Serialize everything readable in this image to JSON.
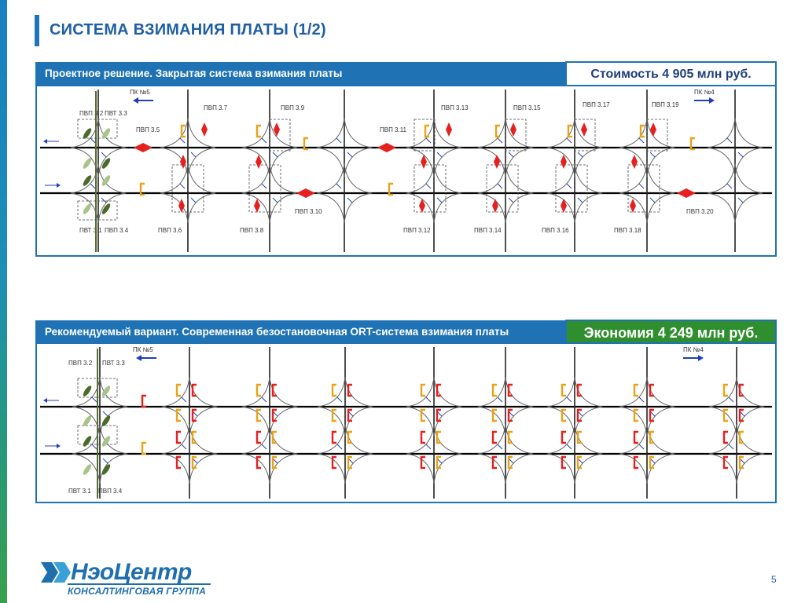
{
  "slide": {
    "title": "СИСТЕМА ВЗИМАНИЯ ПЛАТЫ (1/2)",
    "page_number": "5"
  },
  "panel1": {
    "header": "Проектное решение. Закрытая система взимания платы",
    "badge": "Стоимость 4 905 млн руб.",
    "km_left": "ПК №5",
    "km_right": "ПК №4",
    "top_labels": [
      "ПВП 3.2",
      "ПВТ 3.3",
      "ПВП 3.5",
      "ПВП 3.7",
      "ПВП 3.9",
      "ПВП 3.11",
      "ПВП 3.13",
      "ПВП 3.15",
      "ПВП 3.17",
      "ПВП 3.19"
    ],
    "bottom_labels": [
      "ПВТ 3.1",
      "ПВП 3.4",
      "ПВП 3.6",
      "ПВП 3.8",
      "ПВП 3.10",
      "ПВП 3.12",
      "ПВП 3.14",
      "ПВП 3.16",
      "ПВП 3.18",
      "ПВП 3.20"
    ]
  },
  "panel2": {
    "header": "Рекомендуемый вариант. Современная безостановочная ORT-система взимания платы",
    "badge": "Экономия 4 249 млн руб.",
    "km_left": "ПК №5",
    "km_right": "ПК №4",
    "top_labels": [
      "ПВП 3.2",
      "ПВТ 3.3"
    ],
    "bottom_labels": [
      "ПВТ 3.1",
      "ПВП 3.4"
    ]
  },
  "logo": {
    "name": "НэоЦентр",
    "subtitle": "КОНСАЛТИНГОВАЯ ГРУППА"
  },
  "colors": {
    "accent": "#1f73b4",
    "savings": "#2f8f2f",
    "toll_plaza": "#e5201f",
    "gantry": "#e8a317"
  }
}
